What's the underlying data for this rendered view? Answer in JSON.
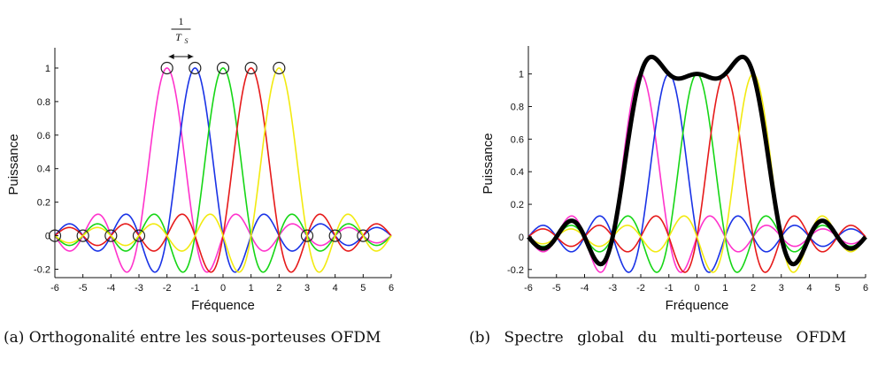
{
  "chart_data": [
    {
      "type": "line",
      "caption": "(a) Orthogonalité entre les sous-porteuses OFDM",
      "xlabel": "Fréquence",
      "ylabel": "Puissance",
      "xlim": [
        -6,
        6
      ],
      "ylim": [
        -0.25,
        1.1
      ],
      "x_ticks": [
        "-6",
        "-5",
        "-4",
        "-3",
        "-2",
        "-1",
        "0",
        "1",
        "2",
        "3",
        "4",
        "5",
        "6"
      ],
      "y_ticks": [
        "-0.2",
        "0",
        "0.2",
        "0.4",
        "0.6",
        "0.8",
        "1"
      ],
      "annotation": {
        "numerator": "1",
        "denominator": "T",
        "subscript": "S"
      },
      "series": [
        {
          "color": "#ff33cc",
          "center": -2,
          "function": "sinc(f - center)"
        },
        {
          "color": "#1a33e6",
          "center": -1,
          "function": "sinc(f - center)"
        },
        {
          "color": "#16d616",
          "center": 0,
          "function": "sinc(f - center)"
        },
        {
          "color": "#e61a1a",
          "center": 1,
          "function": "sinc(f - center)"
        },
        {
          "color": "#f2ea10",
          "center": 2,
          "function": "sinc(f - center)"
        }
      ],
      "markers": {
        "peaks": [
          -2,
          -1,
          0,
          1,
          2
        ],
        "zeros": [
          -6,
          -5,
          -4,
          -3,
          3,
          4,
          5
        ]
      }
    },
    {
      "type": "line",
      "caption": "(b) Spectre global du multi-porteuse OFDM",
      "xlabel": "Fréquence",
      "ylabel": "Puissance",
      "xlim": [
        -6,
        6
      ],
      "ylim": [
        -0.25,
        1.15
      ],
      "x_ticks": [
        "-6",
        "-5",
        "-4",
        "-3",
        "-2",
        "-1",
        "0",
        "1",
        "2",
        "3",
        "4",
        "5",
        "6"
      ],
      "y_ticks": [
        "-0.2",
        "0",
        "0.2",
        "0.4",
        "0.6",
        "0.8",
        "1"
      ],
      "series": [
        {
          "color": "#ff33cc",
          "center": -2,
          "function": "sinc(f - center)"
        },
        {
          "color": "#1a33e6",
          "center": -1,
          "function": "sinc(f - center)"
        },
        {
          "color": "#16d616",
          "center": 0,
          "function": "sinc(f - center)"
        },
        {
          "color": "#e61a1a",
          "center": 1,
          "function": "sinc(f - center)"
        },
        {
          "color": "#f2ea10",
          "center": 2,
          "function": "sinc(f - center)"
        },
        {
          "color": "#000000",
          "function": "sum of sinc(f - k), k = -2..2",
          "emphasis": "thick"
        }
      ]
    }
  ]
}
